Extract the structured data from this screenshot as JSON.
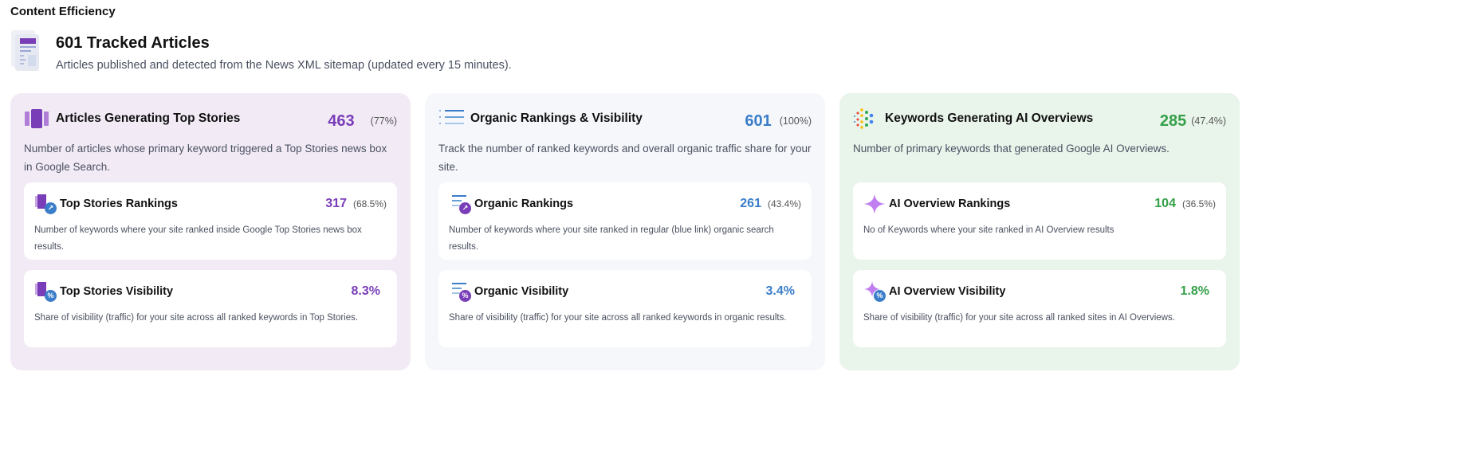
{
  "section_title": "Content Efficiency",
  "hero": {
    "title": "601 Tracked Articles",
    "subtitle": "Articles published and detected from the News XML sitemap (updated every 15 minutes)."
  },
  "colors": {
    "purple": "#7a3db8",
    "blue": "#3a7dc9",
    "green": "#35a048"
  },
  "cards": [
    {
      "title": "Articles Generating Top Stories",
      "value": "463",
      "percent": "(77%)",
      "description": "Number of articles whose primary keyword triggered a Top Stories news box in Google Search.",
      "metrics": [
        {
          "title": "Top Stories Rankings",
          "value": "317",
          "percent": "(68.5%)",
          "description": "Number of keywords where your site ranked inside Google Top Stories news box results."
        },
        {
          "title": "Top Stories Visibility",
          "value": "8.3%",
          "description": "Share of visibility (traffic) for your site across all ranked keywords in Top Stories."
        }
      ]
    },
    {
      "title": "Organic Rankings & Visibility",
      "value": "601",
      "percent": "(100%)",
      "description": "Track the number of ranked keywords and overall organic traffic share for your site.",
      "metrics": [
        {
          "title": "Organic Rankings",
          "value": "261",
          "percent": "(43.4%)",
          "description": "Number of keywords where your site ranked in regular (blue link) organic search results."
        },
        {
          "title": "Organic Visibility",
          "value": "3.4%",
          "description": "Share of visibility (traffic) for your site across all ranked keywords in organic results."
        }
      ]
    },
    {
      "title": "Keywords Generating AI Overviews",
      "value": "285",
      "percent": "(47.4%)",
      "description": "Number of primary keywords that generated Google AI Overviews.",
      "metrics": [
        {
          "title": "AI Overview Rankings",
          "value": "104",
          "percent": "(36.5%)",
          "description": "No of Keywords where your site ranked in AI Overview results"
        },
        {
          "title": "AI Overview Visibility",
          "value": "1.8%",
          "description": "Share of visibility (traffic) for your site across all ranked sites in AI Overviews."
        }
      ]
    }
  ]
}
